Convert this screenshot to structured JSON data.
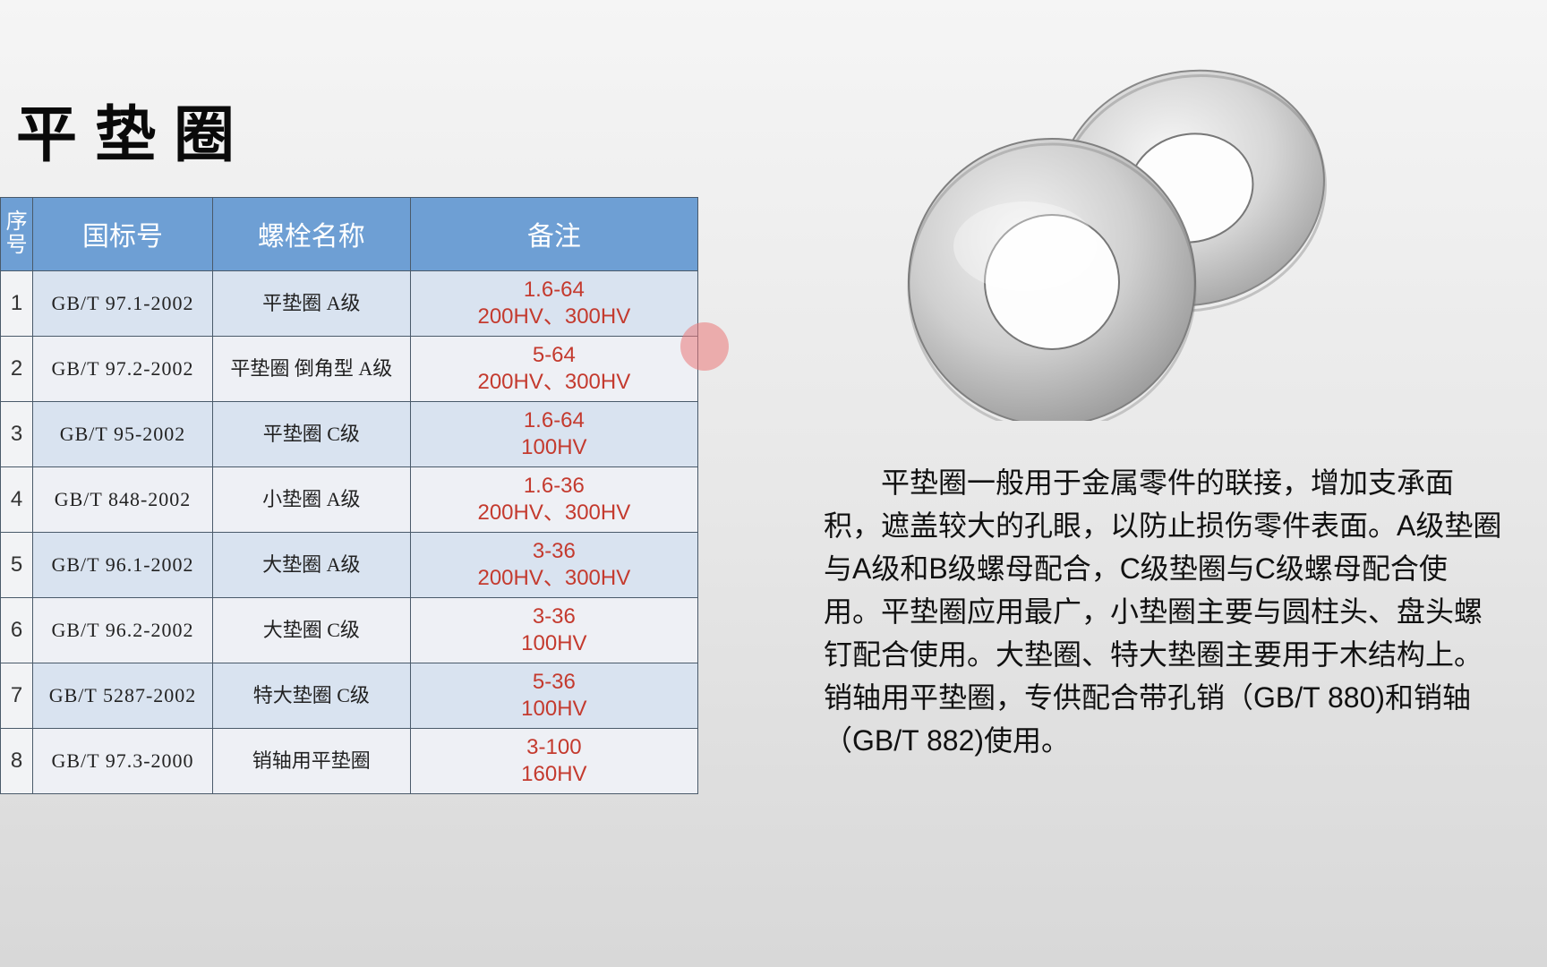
{
  "title": "平垫圈",
  "table": {
    "headers": {
      "seq": "序号",
      "std": "国标号",
      "name": "螺栓名称",
      "note": "备注"
    },
    "rows": [
      {
        "seq": "1",
        "std": "GB/T 97.1-2002",
        "name": "平垫圈 A级",
        "note_l1": "1.6-64",
        "note_l2": "200HV、300HV"
      },
      {
        "seq": "2",
        "std": "GB/T 97.2-2002",
        "name": "平垫圈 倒角型 A级",
        "note_l1": "5-64",
        "note_l2": "200HV、300HV"
      },
      {
        "seq": "3",
        "std": "GB/T 95-2002",
        "name": "平垫圈 C级",
        "note_l1": "1.6-64",
        "note_l2": "100HV"
      },
      {
        "seq": "4",
        "std": "GB/T 848-2002",
        "name": "小垫圈 A级",
        "note_l1": "1.6-36",
        "note_l2": "200HV、300HV"
      },
      {
        "seq": "5",
        "std": "GB/T 96.1-2002",
        "name": "大垫圈 A级",
        "note_l1": "3-36",
        "note_l2": "200HV、300HV"
      },
      {
        "seq": "6",
        "std": "GB/T 96.2-2002",
        "name": "大垫圈 C级",
        "note_l1": "3-36",
        "note_l2": "100HV"
      },
      {
        "seq": "7",
        "std": "GB/T 5287-2002",
        "name": "特大垫圈 C级",
        "note_l1": "5-36",
        "note_l2": "100HV"
      },
      {
        "seq": "8",
        "std": "GB/T 97.3-2000",
        "name": "销轴用平垫圈",
        "note_l1": "3-100",
        "note_l2": "160HV"
      }
    ]
  },
  "description": "平垫圈一般用于金属零件的联接，增加支承面积，遮盖较大的孔眼，以防止损伤零件表面。A级垫圈与A级和B级螺母配合，C级垫圈与C级螺母配合使用。平垫圈应用最广，小垫圈主要与圆柱头、盘头螺钉配合使用。大垫圈、特大垫圈主要用于木结构上。销轴用平垫圈，专供配合带孔销（GB/T 880)和销轴（GB/T 882)使用。",
  "colors": {
    "header_bg": "#6e9fd4",
    "row_odd_bg": "#d9e3f0",
    "row_even_bg": "#eef0f5",
    "note_text": "#c43a2e",
    "border": "#4a5a6a"
  }
}
